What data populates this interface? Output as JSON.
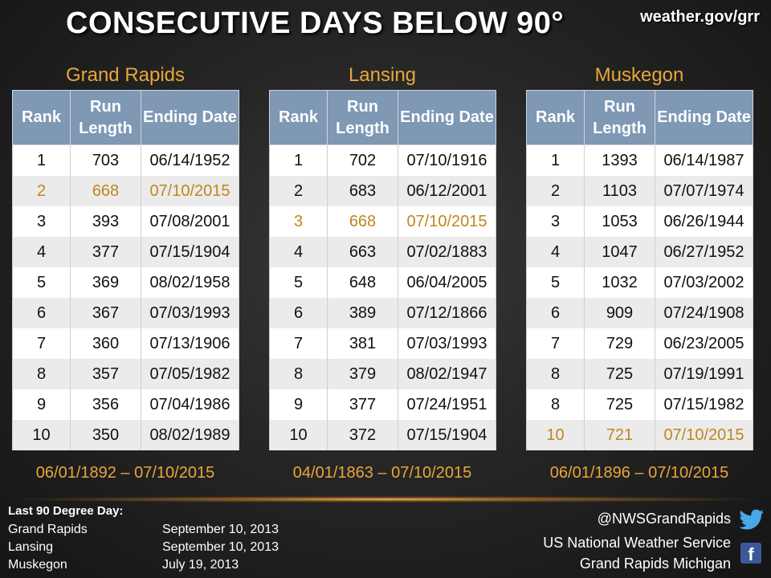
{
  "header": {
    "title": "CONSECUTIVE DAYS BELOW 90°",
    "site": "weather.gov/grr"
  },
  "columns": {
    "rank": "Rank",
    "run_length": "Run Length",
    "ending_date": "Ending Date"
  },
  "colors": {
    "accent": "#e9a63a",
    "header_bg": "#7f98b3",
    "highlight_text": "#c0861c"
  },
  "cities": [
    {
      "name": "Grand Rapids",
      "range": "06/01/1892 – 07/10/2015",
      "rows": [
        {
          "rank": "1",
          "len": "703",
          "date": "06/14/1952",
          "hl": false
        },
        {
          "rank": "2",
          "len": "668",
          "date": "07/10/2015",
          "hl": true
        },
        {
          "rank": "3",
          "len": "393",
          "date": "07/08/2001",
          "hl": false
        },
        {
          "rank": "4",
          "len": "377",
          "date": "07/15/1904",
          "hl": false
        },
        {
          "rank": "5",
          "len": "369",
          "date": "08/02/1958",
          "hl": false
        },
        {
          "rank": "6",
          "len": "367",
          "date": "07/03/1993",
          "hl": false
        },
        {
          "rank": "7",
          "len": "360",
          "date": "07/13/1906",
          "hl": false
        },
        {
          "rank": "8",
          "len": "357",
          "date": "07/05/1982",
          "hl": false
        },
        {
          "rank": "9",
          "len": "356",
          "date": "07/04/1986",
          "hl": false
        },
        {
          "rank": "10",
          "len": "350",
          "date": "08/02/1989",
          "hl": false
        }
      ]
    },
    {
      "name": "Lansing",
      "range": "04/01/1863 – 07/10/2015",
      "rows": [
        {
          "rank": "1",
          "len": "702",
          "date": "07/10/1916",
          "hl": false
        },
        {
          "rank": "2",
          "len": "683",
          "date": "06/12/2001",
          "hl": false
        },
        {
          "rank": "3",
          "len": "668",
          "date": "07/10/2015",
          "hl": true
        },
        {
          "rank": "4",
          "len": "663",
          "date": "07/02/1883",
          "hl": false
        },
        {
          "rank": "5",
          "len": "648",
          "date": "06/04/2005",
          "hl": false
        },
        {
          "rank": "6",
          "len": "389",
          "date": "07/12/1866",
          "hl": false
        },
        {
          "rank": "7",
          "len": "381",
          "date": "07/03/1993",
          "hl": false
        },
        {
          "rank": "8",
          "len": "379",
          "date": "08/02/1947",
          "hl": false
        },
        {
          "rank": "9",
          "len": "377",
          "date": "07/24/1951",
          "hl": false
        },
        {
          "rank": "10",
          "len": "372",
          "date": "07/15/1904",
          "hl": false
        }
      ]
    },
    {
      "name": "Muskegon",
      "range": "06/01/1896 – 07/10/2015",
      "rows": [
        {
          "rank": "1",
          "len": "1393",
          "date": "06/14/1987",
          "hl": false
        },
        {
          "rank": "2",
          "len": "1103",
          "date": "07/07/1974",
          "hl": false
        },
        {
          "rank": "3",
          "len": "1053",
          "date": "06/26/1944",
          "hl": false
        },
        {
          "rank": "4",
          "len": "1047",
          "date": "06/27/1952",
          "hl": false
        },
        {
          "rank": "5",
          "len": "1032",
          "date": "07/03/2002",
          "hl": false
        },
        {
          "rank": "6",
          "len": "909",
          "date": "07/24/1908",
          "hl": false
        },
        {
          "rank": "7",
          "len": "729",
          "date": "06/23/2005",
          "hl": false
        },
        {
          "rank": "8",
          "len": "725",
          "date": "07/19/1991",
          "hl": false
        },
        {
          "rank": "8",
          "len": "725",
          "date": "07/15/1982",
          "hl": false
        },
        {
          "rank": "10",
          "len": "721",
          "date": "07/10/2015",
          "hl": true
        }
      ]
    }
  ],
  "footer": {
    "title": "Last 90 Degree Day:",
    "items": [
      {
        "city": "Grand Rapids",
        "date": "September 10, 2013"
      },
      {
        "city": "Lansing",
        "date": "September 10, 2013"
      },
      {
        "city": "Muskegon",
        "date": "July 19, 2013"
      }
    ],
    "handle": "@NWSGrandRapids",
    "org_line1": "US National Weather Service",
    "org_line2": "Grand Rapids Michigan",
    "twitter_icon": "twitter-bird-icon",
    "facebook_icon": "facebook-icon"
  }
}
